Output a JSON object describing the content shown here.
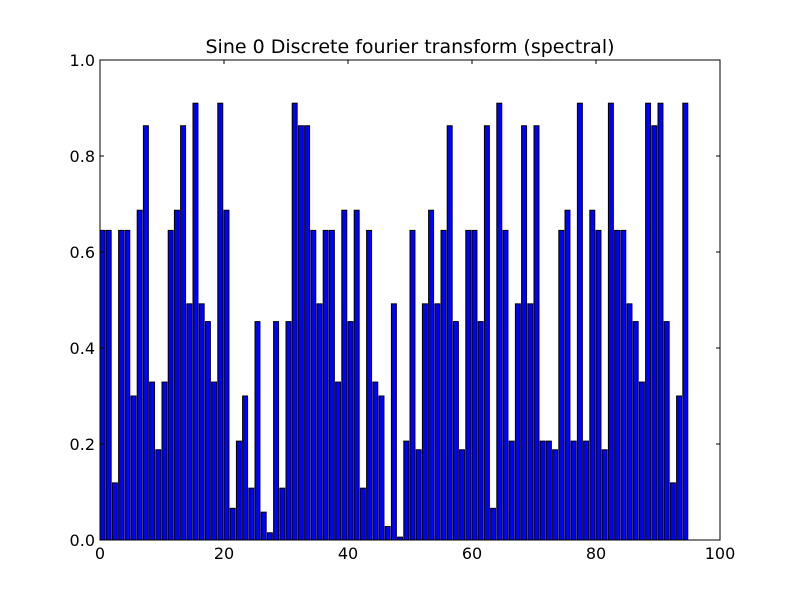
{
  "chart_data": {
    "type": "bar",
    "title": "Sine 0 Discrete fourier transform (spectral)",
    "xlabel": "",
    "ylabel": "",
    "xlim": [
      0,
      100
    ],
    "ylim": [
      0.0,
      1.0
    ],
    "x_ticks": [
      "0",
      "20",
      "40",
      "60",
      "80",
      "100"
    ],
    "y_ticks": [
      "0.0",
      "0.2",
      "0.4",
      "0.6",
      "0.8",
      "1.0"
    ],
    "bar_color": "#0000ff",
    "bar_edge_color": "#000000",
    "grid": false,
    "x": [
      0,
      1,
      2,
      3,
      4,
      5,
      6,
      7,
      8,
      9,
      10,
      11,
      12,
      13,
      14,
      15,
      16,
      17,
      18,
      19,
      20,
      21,
      22,
      23,
      24,
      25,
      26,
      27,
      28,
      29,
      30,
      31,
      32,
      33,
      34,
      35,
      36,
      37,
      38,
      39,
      40,
      41,
      42,
      43,
      44,
      45,
      46,
      47,
      48,
      49,
      50,
      51,
      52,
      53,
      54,
      55,
      56,
      57,
      58,
      59,
      60,
      61,
      62,
      63,
      64,
      65,
      66,
      67,
      68,
      69,
      70,
      71,
      72,
      73,
      74,
      75,
      76,
      77,
      78,
      79,
      80,
      81,
      82,
      83,
      84,
      85,
      86,
      87,
      88,
      89,
      90,
      91,
      92,
      93,
      94
    ],
    "values": [
      0.645,
      0.645,
      0.119,
      0.645,
      0.645,
      0.3,
      0.687,
      0.863,
      0.329,
      0.188,
      0.329,
      0.645,
      0.687,
      0.863,
      0.492,
      0.91,
      0.492,
      0.455,
      0.329,
      0.91,
      0.687,
      0.066,
      0.206,
      0.3,
      0.108,
      0.455,
      0.058,
      0.015,
      0.455,
      0.108,
      0.455,
      0.91,
      0.863,
      0.863,
      0.645,
      0.492,
      0.645,
      0.645,
      0.329,
      0.687,
      0.455,
      0.687,
      0.108,
      0.645,
      0.329,
      0.3,
      0.028,
      0.492,
      0.006,
      0.206,
      0.645,
      0.188,
      0.492,
      0.687,
      0.492,
      0.645,
      0.863,
      0.455,
      0.188,
      0.645,
      0.645,
      0.455,
      0.863,
      0.066,
      0.91,
      0.645,
      0.206,
      0.492,
      0.863,
      0.492,
      0.863,
      0.206,
      0.206,
      0.188,
      0.645,
      0.687,
      0.206,
      0.91,
      0.206,
      0.687,
      0.645,
      0.188,
      0.91,
      0.645,
      0.645,
      0.492,
      0.455,
      0.329,
      0.91,
      0.863,
      0.91,
      0.455,
      0.119,
      0.3,
      0.91
    ]
  }
}
